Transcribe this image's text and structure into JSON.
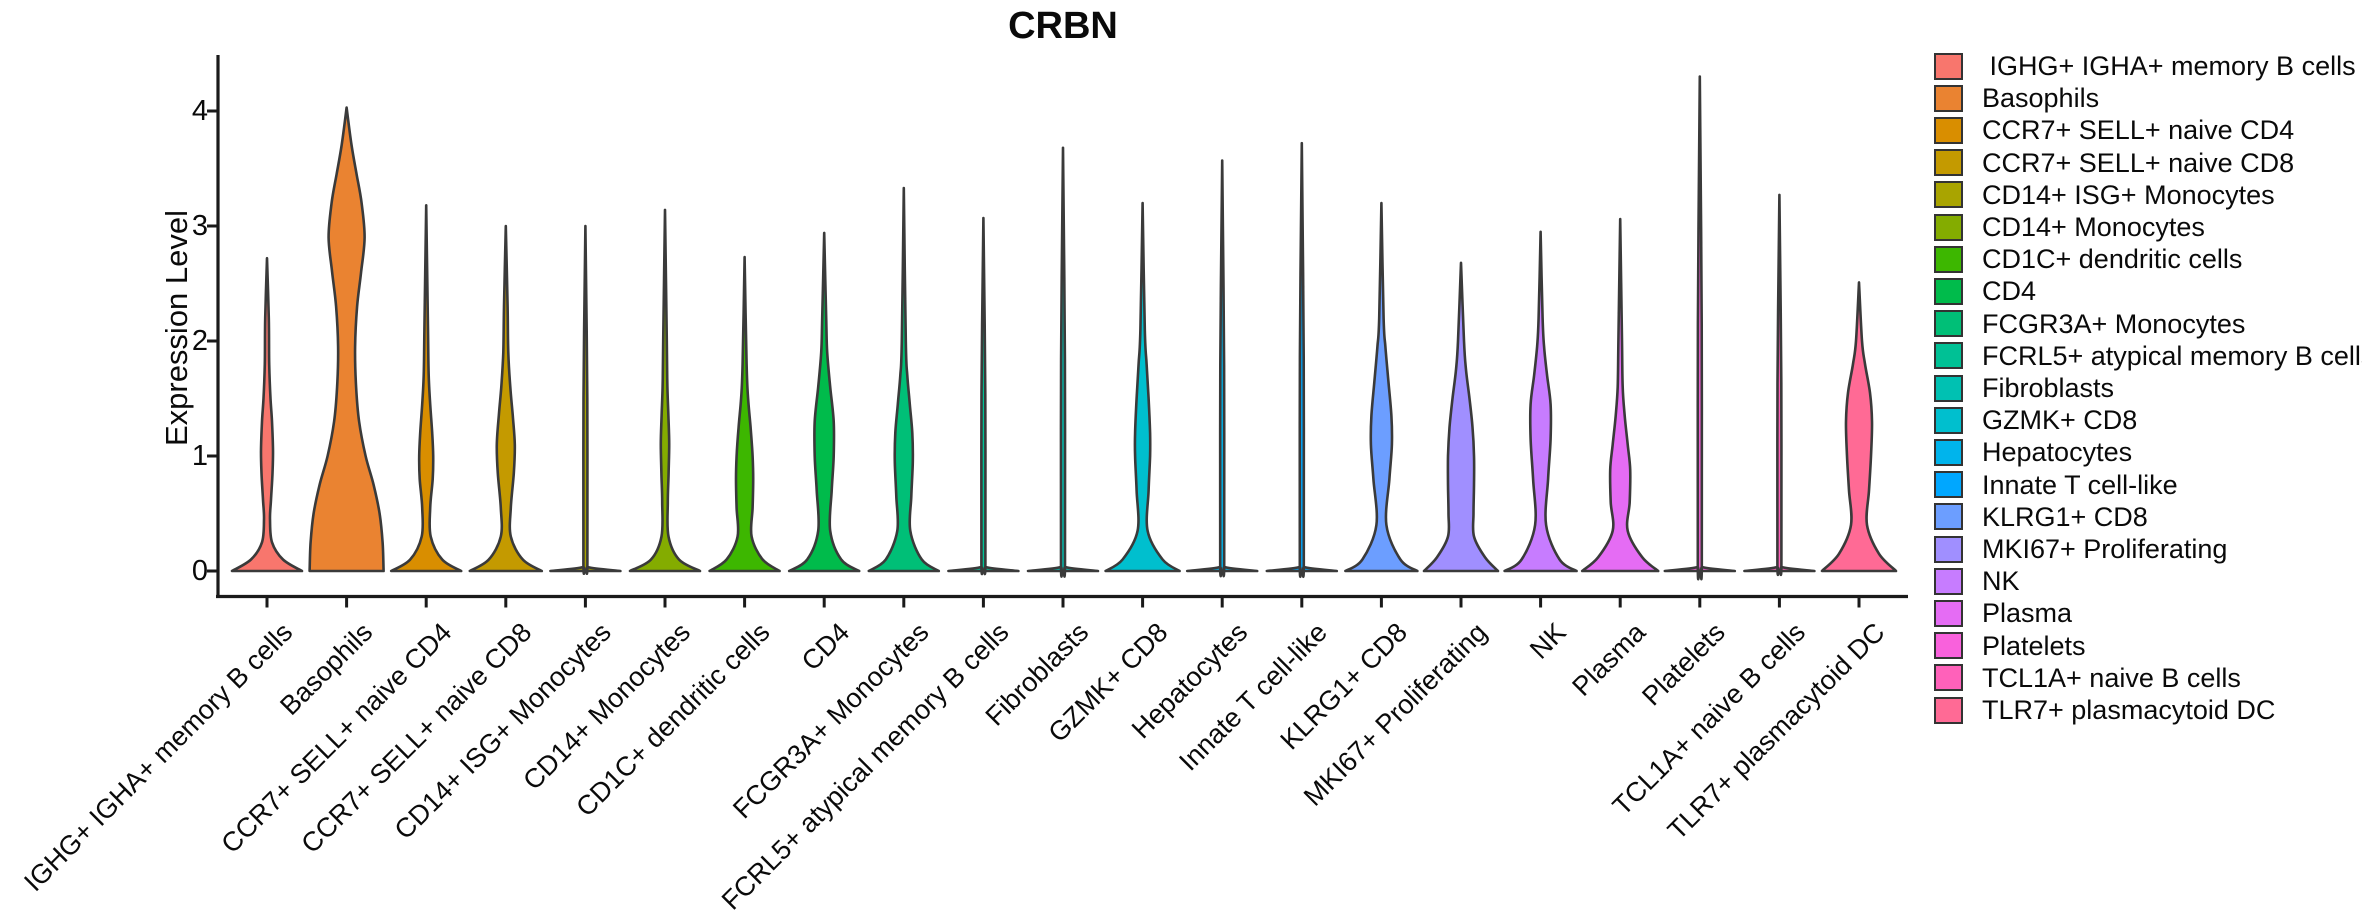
{
  "chart_data": {
    "type": "violin",
    "title": "CRBN",
    "ylabel": "Expression Level",
    "yticks": [
      0,
      1,
      2,
      3,
      4
    ],
    "ylim": [
      -0.25,
      4.49
    ],
    "grid": false,
    "legend_position": "right",
    "colors": {
      "violin_outline": "#3A3A3A",
      "axis": "#1A1A1A",
      "legend_swatch_border": "#333333",
      "text": "#0A0A0A"
    },
    "series": [
      {
        "label": " IGHG+ IGHA+ memory B cells",
        "color": "#F8766D",
        "max_expression": 2.72,
        "profile": [
          [
            0,
            35
          ],
          [
            0.1,
            16
          ],
          [
            0.25,
            5
          ],
          [
            0.45,
            3
          ],
          [
            0.62,
            4
          ],
          [
            0.85,
            5.5
          ],
          [
            1.05,
            6
          ],
          [
            1.3,
            5
          ],
          [
            1.5,
            3.5
          ],
          [
            1.8,
            2.2
          ],
          [
            2.2,
            1.8
          ],
          [
            2.72,
            0
          ]
        ]
      },
      {
        "label": "Basophils",
        "color": "#EA8331",
        "max_expression": 4.03,
        "profile": [
          [
            0,
            37
          ],
          [
            0.25,
            36
          ],
          [
            0.5,
            33
          ],
          [
            0.75,
            27
          ],
          [
            1.0,
            19
          ],
          [
            1.3,
            12.5
          ],
          [
            1.6,
            9.5
          ],
          [
            1.95,
            8.5
          ],
          [
            2.3,
            10.5
          ],
          [
            2.6,
            14.5
          ],
          [
            2.9,
            18
          ],
          [
            3.2,
            15
          ],
          [
            3.45,
            10
          ],
          [
            3.7,
            5
          ],
          [
            4.03,
            0
          ]
        ]
      },
      {
        "label": "CCR7+ SELL+ naive CD4",
        "color": "#D98E00",
        "max_expression": 3.18,
        "profile": [
          [
            0,
            35
          ],
          [
            0.1,
            16
          ],
          [
            0.3,
            4.5
          ],
          [
            0.55,
            4
          ],
          [
            0.8,
            6.5
          ],
          [
            1.0,
            7
          ],
          [
            1.2,
            6
          ],
          [
            1.45,
            4
          ],
          [
            1.7,
            2.5
          ],
          [
            2.1,
            1.8
          ],
          [
            3.18,
            0
          ]
        ]
      },
      {
        "label": "CCR7+ SELL+ naive CD8",
        "color": "#C49A00",
        "max_expression": 3.0,
        "profile": [
          [
            0,
            36
          ],
          [
            0.1,
            17
          ],
          [
            0.3,
            5
          ],
          [
            0.55,
            5
          ],
          [
            0.85,
            8
          ],
          [
            1.1,
            9
          ],
          [
            1.35,
            7
          ],
          [
            1.6,
            4.5
          ],
          [
            1.9,
            2.5
          ],
          [
            2.3,
            1.8
          ],
          [
            3.0,
            0
          ]
        ]
      },
      {
        "label": "CD14+ ISG+ Monocytes",
        "color": "#A9A400",
        "max_expression": 3.0,
        "line_only": true
      },
      {
        "label": "CD14+ Monocytes",
        "color": "#84AC00",
        "max_expression": 3.14,
        "profile": [
          [
            0,
            35
          ],
          [
            0.1,
            14
          ],
          [
            0.3,
            3.5
          ],
          [
            0.6,
            2.8
          ],
          [
            0.85,
            3.6
          ],
          [
            1.1,
            4.2
          ],
          [
            1.35,
            3.4
          ],
          [
            1.6,
            2.4
          ],
          [
            2.0,
            1.8
          ],
          [
            3.14,
            0
          ]
        ]
      },
      {
        "label": "CD1C+ dendritic cells",
        "color": "#3DB700",
        "max_expression": 2.73,
        "profile": [
          [
            0,
            35
          ],
          [
            0.1,
            18
          ],
          [
            0.3,
            7
          ],
          [
            0.55,
            8
          ],
          [
            0.8,
            8.6
          ],
          [
            1.0,
            8
          ],
          [
            1.25,
            6
          ],
          [
            1.5,
            3.5
          ],
          [
            1.8,
            2
          ],
          [
            2.73,
            0
          ]
        ]
      },
      {
        "label": "CD4",
        "color": "#00BB4B",
        "max_expression": 2.94,
        "profile": [
          [
            0,
            35
          ],
          [
            0.1,
            17
          ],
          [
            0.35,
            6
          ],
          [
            0.7,
            7.5
          ],
          [
            1.0,
            9.5
          ],
          [
            1.3,
            9.5
          ],
          [
            1.6,
            6
          ],
          [
            1.9,
            3
          ],
          [
            2.2,
            2
          ],
          [
            2.94,
            0
          ]
        ]
      },
      {
        "label": "FCGR3A+ Monocytes",
        "color": "#00BF77",
        "max_expression": 3.33,
        "profile": [
          [
            0,
            35
          ],
          [
            0.1,
            18
          ],
          [
            0.35,
            6.5
          ],
          [
            0.65,
            7.5
          ],
          [
            0.95,
            9
          ],
          [
            1.2,
            8.5
          ],
          [
            1.45,
            6
          ],
          [
            1.7,
            3.5
          ],
          [
            2.0,
            2
          ],
          [
            3.33,
            0
          ]
        ]
      },
      {
        "label": "FCRL5+ atypical memory B cells",
        "color": "#00C195",
        "max_expression": 3.07,
        "line_only": true
      },
      {
        "label": "Fibroblasts",
        "color": "#00C1B2",
        "max_expression": 3.68,
        "line_only": true
      },
      {
        "label": "GZMK+ CD8",
        "color": "#00BFCE",
        "max_expression": 3.2,
        "profile": [
          [
            0,
            37
          ],
          [
            0.1,
            20
          ],
          [
            0.35,
            5
          ],
          [
            0.7,
            6
          ],
          [
            1.0,
            7.5
          ],
          [
            1.2,
            7.5
          ],
          [
            1.5,
            6
          ],
          [
            1.8,
            4
          ],
          [
            2.1,
            2.2
          ],
          [
            3.2,
            0
          ]
        ]
      },
      {
        "label": "Hepatocytes",
        "color": "#00B4EC",
        "max_expression": 3.57,
        "line_only": true
      },
      {
        "label": "Innate T cell-like",
        "color": "#00A7FF",
        "max_expression": 3.72,
        "line_only": true
      },
      {
        "label": "KLRG1+ CD8",
        "color": "#6C9EFF",
        "max_expression": 3.2,
        "profile": [
          [
            0,
            36
          ],
          [
            0.1,
            19
          ],
          [
            0.4,
            5
          ],
          [
            0.8,
            8
          ],
          [
            1.1,
            10.5
          ],
          [
            1.35,
            10
          ],
          [
            1.65,
            7
          ],
          [
            1.95,
            4
          ],
          [
            2.2,
            2.2
          ],
          [
            3.2,
            0
          ]
        ]
      },
      {
        "label": "MKI67+ Proliferating",
        "color": "#A08FFF",
        "max_expression": 2.68,
        "profile": [
          [
            0,
            37
          ],
          [
            0.12,
            24
          ],
          [
            0.3,
            13
          ],
          [
            0.5,
            12.5
          ],
          [
            0.75,
            13
          ],
          [
            1.0,
            13
          ],
          [
            1.25,
            11.5
          ],
          [
            1.5,
            8.5
          ],
          [
            1.75,
            5
          ],
          [
            2.0,
            3
          ],
          [
            2.68,
            0
          ]
        ]
      },
      {
        "label": "NK",
        "color": "#C77CFF",
        "max_expression": 2.95,
        "profile": [
          [
            0,
            36
          ],
          [
            0.1,
            19
          ],
          [
            0.4,
            5.5
          ],
          [
            0.8,
            7.5
          ],
          [
            1.15,
            10
          ],
          [
            1.45,
            10
          ],
          [
            1.7,
            6.5
          ],
          [
            1.95,
            3.5
          ],
          [
            2.2,
            2
          ],
          [
            2.95,
            0
          ]
        ]
      },
      {
        "label": "Plasma",
        "color": "#E56CF4",
        "max_expression": 3.06,
        "profile": [
          [
            0,
            38
          ],
          [
            0.12,
            22
          ],
          [
            0.35,
            7.5
          ],
          [
            0.6,
            9.5
          ],
          [
            0.88,
            10
          ],
          [
            1.1,
            7.5
          ],
          [
            1.35,
            4.5
          ],
          [
            1.6,
            2.5
          ],
          [
            2.0,
            1.8
          ],
          [
            3.06,
            0
          ]
        ]
      },
      {
        "label": "Platelets",
        "color": "#F961DC",
        "max_expression": 4.3,
        "line_only": true
      },
      {
        "label": "TCL1A+ naive B cells",
        "color": "#FF61BA",
        "max_expression": 3.27,
        "line_only": true
      },
      {
        "label": "TLR7+ plasmacytoid DC",
        "color": "#FF6A95",
        "max_expression": 2.51,
        "profile": [
          [
            0,
            37
          ],
          [
            0.15,
            20
          ],
          [
            0.4,
            8
          ],
          [
            0.7,
            10
          ],
          [
            1.0,
            12
          ],
          [
            1.3,
            13
          ],
          [
            1.55,
            11
          ],
          [
            1.8,
            6
          ],
          [
            2.0,
            3
          ],
          [
            2.51,
            0
          ]
        ]
      }
    ]
  }
}
